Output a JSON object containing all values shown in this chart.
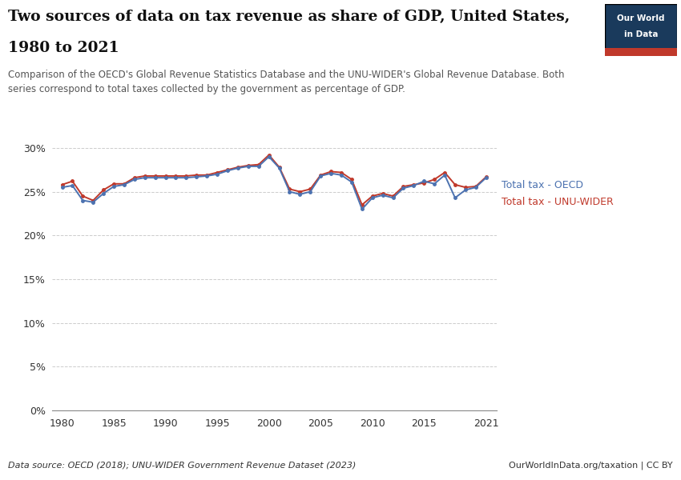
{
  "title_line1": "Two sources of data on tax revenue as share of GDP, United States,",
  "title_line2": "1980 to 2021",
  "subtitle": "Comparison of the OECD's Global Revenue Statistics Database and the UNU-WIDER's Global Revenue Database. Both\nseries correspond to total taxes collected by the government as percentage of GDP.",
  "datasource": "Data source: OECD (2018); UNU-WIDER Government Revenue Dataset (2023)",
  "url": "OurWorldInData.org/taxation | CC BY",
  "oecd_label": "Total tax - OECD",
  "wider_label": "Total tax - UNU-WIDER",
  "oecd_color": "#4C72B0",
  "wider_color": "#C0392B",
  "background_color": "#ffffff",
  "years_oecd": [
    1980,
    1981,
    1982,
    1983,
    1984,
    1985,
    1986,
    1987,
    1988,
    1989,
    1990,
    1991,
    1992,
    1993,
    1994,
    1995,
    1996,
    1997,
    1998,
    1999,
    2000,
    2001,
    2002,
    2003,
    2004,
    2005,
    2006,
    2007,
    2008,
    2009,
    2010,
    2011,
    2012,
    2013,
    2014,
    2015,
    2016,
    2017,
    2018,
    2019,
    2020,
    2021
  ],
  "values_oecd": [
    25.5,
    25.7,
    24.0,
    23.8,
    24.8,
    25.6,
    25.8,
    26.4,
    26.6,
    26.6,
    26.6,
    26.6,
    26.6,
    26.7,
    26.8,
    27.0,
    27.4,
    27.7,
    27.9,
    27.9,
    29.0,
    27.7,
    25.0,
    24.7,
    25.0,
    26.8,
    27.1,
    26.9,
    26.1,
    23.0,
    24.3,
    24.6,
    24.3,
    25.4,
    25.7,
    26.2,
    25.9,
    26.9,
    24.3,
    25.2,
    25.5,
    26.6
  ],
  "years_wider": [
    1980,
    1981,
    1982,
    1983,
    1984,
    1985,
    1986,
    1987,
    1988,
    1989,
    1990,
    1991,
    1992,
    1993,
    1994,
    1995,
    1996,
    1997,
    1998,
    1999,
    2000,
    2001,
    2002,
    2003,
    2004,
    2005,
    2006,
    2007,
    2008,
    2009,
    2010,
    2011,
    2012,
    2013,
    2014,
    2015,
    2016,
    2017,
    2018,
    2019,
    2020,
    2021
  ],
  "values_wider": [
    25.8,
    26.2,
    24.5,
    24.0,
    25.2,
    25.9,
    25.9,
    26.6,
    26.8,
    26.8,
    26.8,
    26.8,
    26.8,
    26.9,
    26.9,
    27.2,
    27.5,
    27.8,
    28.0,
    28.1,
    29.2,
    27.8,
    25.3,
    25.0,
    25.3,
    26.9,
    27.3,
    27.2,
    26.4,
    23.5,
    24.5,
    24.8,
    24.5,
    25.6,
    25.8,
    26.0,
    26.4,
    27.2,
    25.8,
    25.5,
    25.6,
    26.7
  ],
  "ylim": [
    0,
    0.31
  ],
  "yticks": [
    0.0,
    0.05,
    0.1,
    0.15,
    0.2,
    0.25,
    0.3
  ],
  "xlim": [
    1979,
    2022
  ],
  "xticks": [
    1980,
    1985,
    1990,
    1995,
    2000,
    2005,
    2010,
    2015,
    2021
  ],
  "grid_color": "#cccccc",
  "logo_bg": "#1a3a5c",
  "logo_red": "#c0392b"
}
